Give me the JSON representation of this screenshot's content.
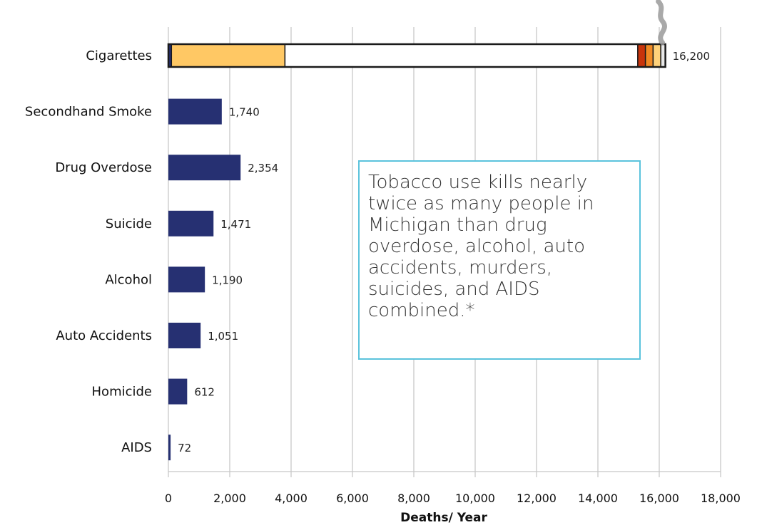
{
  "chart_data": {
    "type": "bar",
    "orientation": "horizontal",
    "categories": [
      "Cigarettes",
      "Secondhand Smoke",
      "Drug Overdose",
      "Suicide",
      "Alcohol",
      "Auto Accidents",
      "Homicide",
      "AIDS"
    ],
    "values": [
      16200,
      1740,
      2354,
      1471,
      1190,
      1051,
      612,
      72
    ],
    "value_labels": [
      "16,200",
      "1,740",
      "2,354",
      "1,471",
      "1,190",
      "1,051",
      "612",
      "72"
    ],
    "xlabel": "Deaths/ Year",
    "ylabel": "",
    "xlim": [
      0,
      18000
    ],
    "x_ticks": [
      0,
      2000,
      4000,
      6000,
      8000,
      10000,
      12000,
      14000,
      16000,
      18000
    ],
    "x_tick_labels": [
      "0",
      "2,000",
      "4,000",
      "6,000",
      "8,000",
      "10,000",
      "12,000",
      "14,000",
      "16,000",
      "18,000"
    ],
    "grid": "vertical",
    "bar_color": "#263072",
    "cigarette_segments": [
      {
        "start": 0,
        "end": 100,
        "color": "#263072"
      },
      {
        "start": 100,
        "end": 3800,
        "color": "#ffc864"
      },
      {
        "start": 3800,
        "end": 15300,
        "color": "#ffffff"
      },
      {
        "start": 15300,
        "end": 15550,
        "color": "#c8340b"
      },
      {
        "start": 15550,
        "end": 15800,
        "color": "#f08a24"
      },
      {
        "start": 15800,
        "end": 16050,
        "color": "#ffd27a"
      },
      {
        "start": 16050,
        "end": 16200,
        "color": "#e8e8e8"
      }
    ],
    "annotation": "Tobacco use kills nearly twice as many people in Michigan than drug overdose, alcohol, auto accidents, murders, suicides, and AIDS combined.*",
    "annotation_border_color": "#5bc3dc",
    "smoke_color": "#9a9a9a"
  }
}
